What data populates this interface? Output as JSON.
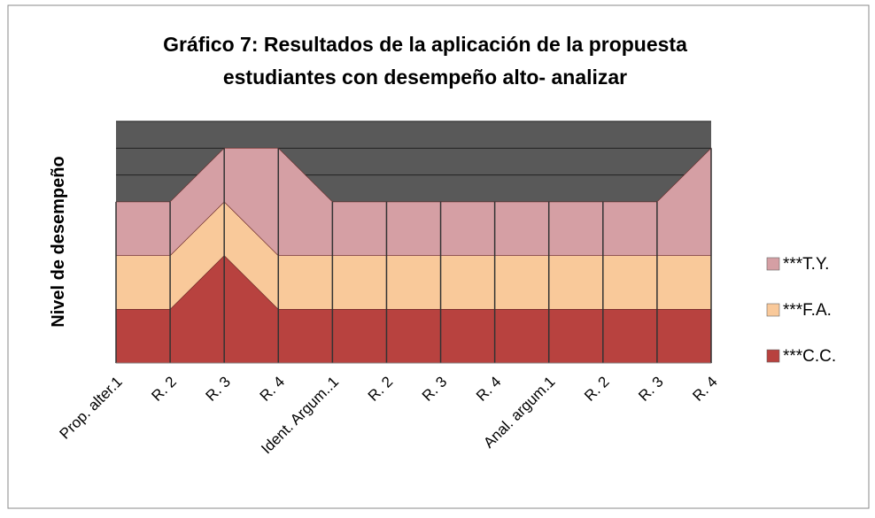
{
  "chart_data": {
    "type": "stacked_area",
    "title": [
      "Gráfico 7: Resultados de la aplicación de la propuesta",
      "estudiantes con desempeño alto- analizar"
    ],
    "y_label": "Nivel de desempeño",
    "categories": [
      "Prop. alter.1",
      "R. 2",
      "R. 3",
      "R. 4",
      "Ident. Argum..1",
      "R. 2",
      "R. 3",
      "R. 4",
      "Anal. argum.1",
      "R. 2",
      "R. 3",
      "R. 4"
    ],
    "series": [
      {
        "name": "***C.C.",
        "color": "#b8423f",
        "values": [
          1,
          1,
          2,
          1,
          1,
          1,
          1,
          1,
          1,
          1,
          1,
          1
        ]
      },
      {
        "name": "***F.A.",
        "color": "#f9c99a",
        "values": [
          1,
          1,
          1,
          1,
          1,
          1,
          1,
          1,
          1,
          1,
          1,
          1
        ]
      },
      {
        "name": "***T.Y.",
        "color": "#d59fa4",
        "values": [
          1,
          1,
          1,
          2,
          1,
          1,
          1,
          1,
          1,
          1,
          1,
          2
        ]
      }
    ],
    "ylim": [
      0,
      4.5
    ],
    "yticks": [
      0,
      0.5,
      1,
      1.5,
      2,
      2.5,
      3,
      3.5,
      4,
      4.5
    ],
    "grid": true,
    "legend": "right",
    "plot_background": "#595959"
  }
}
